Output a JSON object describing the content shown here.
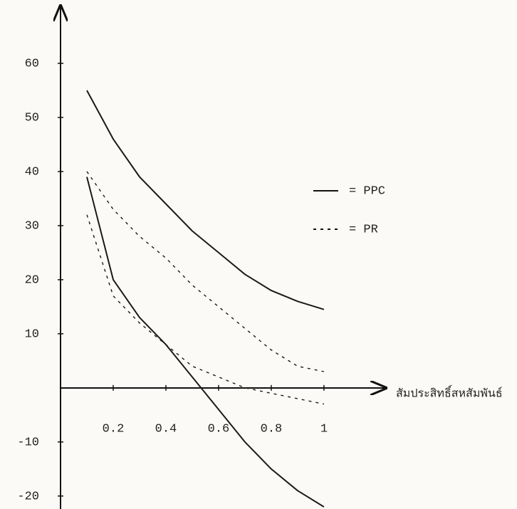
{
  "chart_data": {
    "type": "line",
    "x": [
      0.1,
      0.2,
      0.3,
      0.4,
      0.5,
      0.6,
      0.7,
      0.8,
      0.9,
      1
    ],
    "series": [
      {
        "style": "solid",
        "color": "#1a1a1a",
        "values": [
          55,
          46,
          39,
          34,
          29,
          25,
          21,
          18,
          16,
          14.5
        ]
      },
      {
        "style": "solid",
        "color": "#1a1a1a",
        "values": [
          39,
          20,
          13,
          8,
          2,
          -4,
          -10,
          -15,
          -19,
          -22
        ]
      },
      {
        "style": "dotted",
        "color": "#1a1a1a",
        "values": [
          40,
          33,
          28,
          24,
          19,
          15,
          11,
          7,
          4,
          3
        ]
      },
      {
        "style": "dotted",
        "color": "#1a1a1a",
        "values": [
          32,
          17,
          12,
          8,
          4,
          2,
          0,
          -1,
          -2,
          -3
        ]
      }
    ],
    "legend": [
      {
        "label": "= PPC",
        "style": "solid"
      },
      {
        "label": "= PR",
        "style": "dotted"
      }
    ],
    "x_label": "สัมประสิทธิ์สหสัมพันธ์",
    "xlim": [
      0,
      1.23
    ],
    "ylim": [
      -22.4,
      70.4
    ],
    "xticks": [
      {
        "value": 0.2,
        "label": "0.2"
      },
      {
        "value": 0.4,
        "label": "0.4"
      },
      {
        "value": 0.6,
        "label": "0.6"
      },
      {
        "value": 0.8,
        "label": "0.8"
      },
      1
    ],
    "yticks": [
      -20,
      -10,
      10,
      20,
      30,
      40,
      50,
      60
    ]
  }
}
